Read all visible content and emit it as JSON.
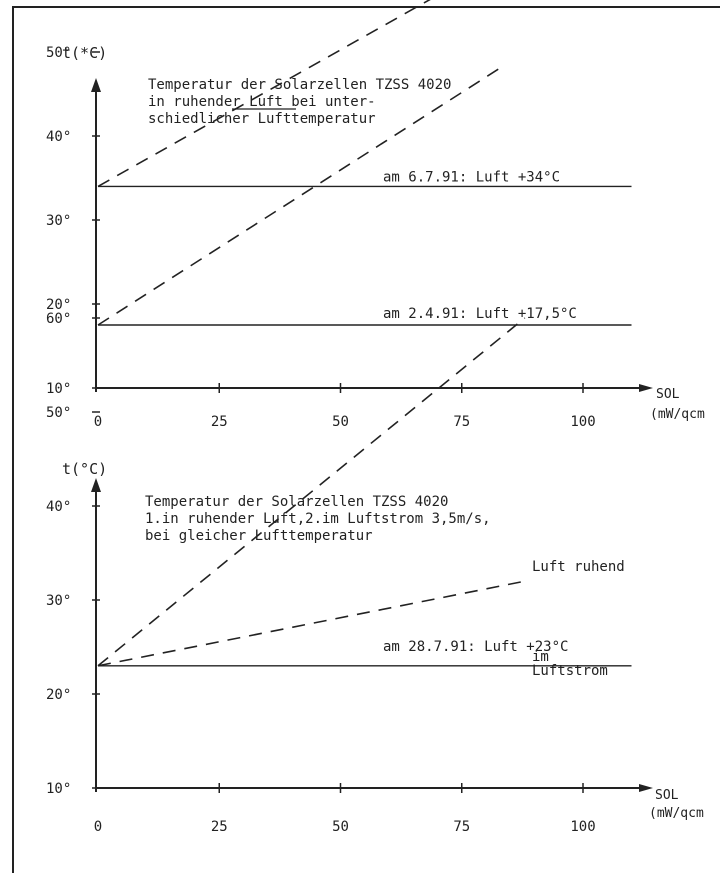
{
  "chart_data": [
    {
      "type": "line",
      "ylabel": "t(*C)",
      "xlabel": "SOL",
      "xlabel_unit": "(mW/qcm",
      "title_lines": [
        "Temperatur der Solarzellen TZSS 4020",
        "in ruhender Luft bei unter-",
        "schiedlicher Lufttemperatur"
      ],
      "xlim": [
        0,
        110
      ],
      "ylim": [
        10,
        70
      ],
      "x_ticks": [
        0,
        25,
        50,
        75,
        100
      ],
      "x_tick_labels": [
        "0",
        "25",
        "50",
        "75",
        "100"
      ],
      "y_ticks": [
        10,
        20,
        30,
        40,
        50,
        60
      ],
      "y_tick_labels": [
        "10°",
        "20°",
        "30°",
        "40°",
        "50°",
        "60°"
      ],
      "grid": false,
      "series": [
        {
          "style": "dashed",
          "x": [
            0,
            80
          ],
          "y": [
            34,
            60
          ]
        },
        {
          "style": "dashed",
          "x": [
            0,
            84
          ],
          "y": [
            17.5,
            48.5
          ]
        },
        {
          "style": "solid",
          "x": [
            0,
            110
          ],
          "y": [
            34,
            34
          ]
        },
        {
          "style": "solid",
          "x": [
            0,
            110
          ],
          "y": [
            17.5,
            17.5
          ]
        }
      ],
      "annotations": [
        {
          "text": "am 6.7.91: Luft +34°C",
          "x": 58,
          "y": 34
        },
        {
          "text": "am 2.4.91: Luft +17,5°C",
          "x": 58,
          "y": 17.5
        }
      ]
    },
    {
      "type": "line",
      "ylabel": "t(°C)",
      "xlabel": "SOL",
      "xlabel_unit": "(mW/qcm",
      "title_lines": [
        "Temperatur der Solarzellen TZSS 4020",
        "1.in ruhender Luft,2.im Luftstrom 3,5m/s,",
        "bei gleicher Lufttemperatur"
      ],
      "xlim": [
        0,
        110
      ],
      "ylim": [
        10,
        70
      ],
      "x_ticks": [
        0,
        25,
        50,
        75,
        100
      ],
      "x_tick_labels": [
        "0",
        "25",
        "50",
        "75",
        "100"
      ],
      "y_ticks": [
        10,
        20,
        30,
        40,
        50,
        60
      ],
      "y_tick_labels": [
        "10°",
        "20°",
        "30°",
        "40°",
        "50°",
        "60°"
      ],
      "grid": false,
      "series": [
        {
          "name": "Luft ruhend",
          "style": "dashed",
          "x": [
            0,
            88
          ],
          "y": [
            23,
            60
          ]
        },
        {
          "name": "im Luftstrom",
          "style": "dashed",
          "x": [
            0,
            88
          ],
          "y": [
            23,
            32
          ]
        },
        {
          "style": "solid",
          "x": [
            0,
            110
          ],
          "y": [
            23,
            23
          ]
        }
      ],
      "annotations": [
        {
          "text": "am 28.7.91: Luft +23°C",
          "x": 59,
          "y": 23
        }
      ]
    }
  ]
}
